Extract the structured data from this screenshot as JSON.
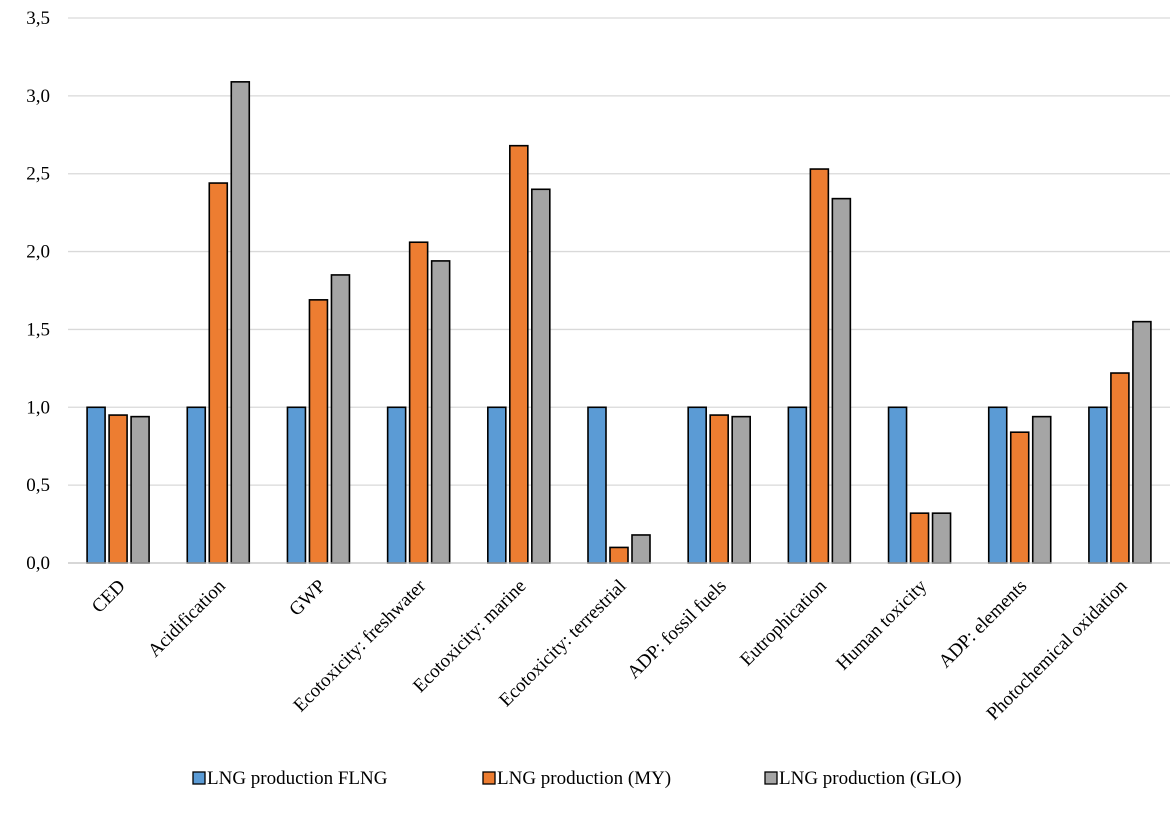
{
  "chart_data": {
    "type": "bar",
    "categories": [
      "CED",
      "Acidification",
      "GWP",
      "Ecotoxicity: freshwater",
      "Ecotoxicity: marine",
      "Ecotoxicity: terrestrial",
      "ADP: fossil fuels",
      "Eutrophication",
      "Human toxicity",
      "ADP: elements",
      "Photochemical oxidation"
    ],
    "series": [
      {
        "name": "LNG production FLNG",
        "color": "#5B9BD5",
        "values": [
          1.0,
          1.0,
          1.0,
          1.0,
          1.0,
          1.0,
          1.0,
          1.0,
          1.0,
          1.0,
          1.0
        ]
      },
      {
        "name": "LNG production (MY)",
        "color": "#ED7D31",
        "values": [
          0.95,
          2.44,
          1.69,
          2.06,
          2.68,
          0.1,
          0.95,
          2.53,
          0.32,
          0.84,
          1.22
        ]
      },
      {
        "name": "LNG production (GLO)",
        "color": "#A5A5A5",
        "values": [
          0.94,
          3.09,
          1.85,
          1.94,
          2.4,
          0.18,
          0.94,
          2.34,
          0.32,
          0.94,
          1.55
        ]
      }
    ],
    "yticks": [
      "0,0",
      "0,5",
      "1,0",
      "1,5",
      "2,0",
      "2,5",
      "3,0",
      "3,5"
    ],
    "ylim": [
      0,
      3.5
    ],
    "grid": true,
    "legend_position": "bottom"
  }
}
